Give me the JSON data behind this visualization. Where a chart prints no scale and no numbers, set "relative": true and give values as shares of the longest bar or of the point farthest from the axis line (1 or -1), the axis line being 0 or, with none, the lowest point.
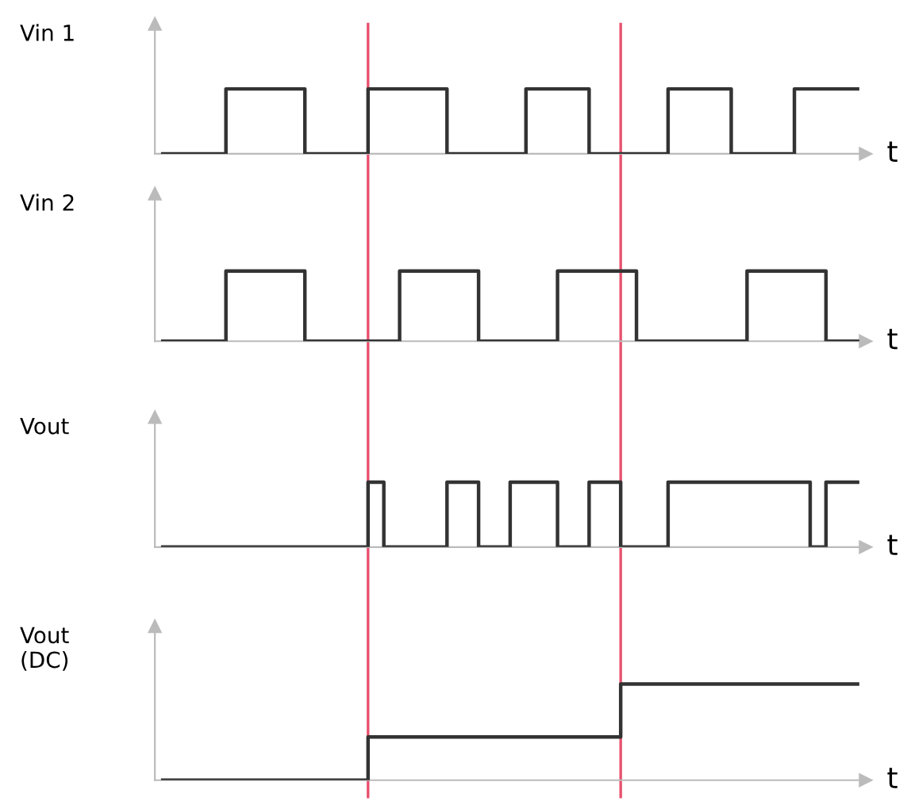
{
  "chart_data": [
    {
      "type": "step",
      "relative": true,
      "ylabel": "Vin 1",
      "xlabel": "t",
      "tick_labels": false,
      "categories": [
        null,
        null,
        null,
        null,
        null,
        null,
        null,
        null,
        null,
        null,
        null,
        null,
        null,
        null,
        null,
        null,
        null,
        null,
        null,
        null,
        null,
        null,
        null,
        null,
        null,
        null,
        null,
        null,
        null,
        null,
        null,
        null,
        null,
        null,
        null,
        null,
        null,
        null,
        null,
        null,
        null,
        null,
        null,
        null,
        null
      ],
      "series": [
        {
          "color": "#333333",
          "values": [
            0,
            0,
            0,
            0,
            1,
            1,
            1,
            1,
            1,
            0,
            0,
            0,
            0,
            1,
            1,
            1,
            1,
            1,
            0,
            0,
            0,
            0,
            0,
            1,
            1,
            1,
            1,
            0,
            0,
            0,
            0,
            0,
            1,
            1,
            1,
            1,
            0,
            0,
            0,
            0,
            1,
            1,
            1,
            1,
            1
          ]
        }
      ]
    },
    {
      "type": "step",
      "relative": true,
      "ylabel": "Vin 2",
      "xlabel": "t",
      "tick_labels": false,
      "categories": [
        null,
        null,
        null,
        null,
        null,
        null,
        null,
        null,
        null,
        null,
        null,
        null,
        null,
        null,
        null,
        null,
        null,
        null,
        null,
        null,
        null,
        null,
        null,
        null,
        null,
        null,
        null,
        null,
        null,
        null,
        null,
        null,
        null,
        null,
        null,
        null,
        null,
        null,
        null,
        null,
        null,
        null,
        null,
        null,
        null
      ],
      "series": [
        {
          "color": "#333333",
          "values": [
            0,
            0,
            0,
            0,
            1,
            1,
            1,
            1,
            1,
            0,
            0,
            0,
            0,
            0,
            0,
            1,
            1,
            1,
            1,
            1,
            0,
            0,
            0,
            0,
            0,
            1,
            1,
            1,
            1,
            1,
            0,
            0,
            0,
            0,
            0,
            0,
            0,
            1,
            1,
            1,
            1,
            1,
            0,
            0,
            0
          ]
        }
      ]
    },
    {
      "type": "step",
      "relative": true,
      "ylabel": "Vout",
      "xlabel": "t",
      "tick_labels": false,
      "categories": [
        null,
        null,
        null,
        null,
        null,
        null,
        null,
        null,
        null,
        null,
        null,
        null,
        null,
        null,
        null,
        null,
        null,
        null,
        null,
        null,
        null,
        null,
        null,
        null,
        null,
        null,
        null,
        null,
        null,
        null,
        null,
        null,
        null,
        null,
        null,
        null,
        null,
        null,
        null,
        null,
        null,
        null,
        null,
        null,
        null
      ],
      "series": [
        {
          "color": "#333333",
          "values": [
            0,
            0,
            0,
            0,
            0,
            0,
            0,
            0,
            0,
            0,
            0,
            0,
            0,
            1,
            0,
            0,
            0,
            0,
            1,
            1,
            0,
            0,
            1,
            1,
            1,
            0,
            0,
            1,
            1,
            0,
            0,
            0,
            1,
            1,
            1,
            1,
            1,
            1,
            1,
            1,
            1,
            0,
            1,
            1,
            1
          ]
        }
      ]
    },
    {
      "type": "step",
      "relative": true,
      "ylabel": "Vout\n(DC)",
      "xlabel": "t",
      "tick_labels": false,
      "categories": [
        null,
        null,
        null,
        null,
        null,
        null,
        null,
        null,
        null,
        null,
        null,
        null,
        null,
        null,
        null,
        null,
        null,
        null,
        null,
        null,
        null,
        null,
        null,
        null,
        null,
        null,
        null,
        null,
        null,
        null,
        null,
        null,
        null,
        null,
        null,
        null,
        null,
        null,
        null,
        null,
        null,
        null,
        null,
        null,
        null
      ],
      "series": [
        {
          "color": "#333333",
          "values": [
            0,
            0,
            0,
            0,
            0,
            0,
            0,
            0,
            0,
            0,
            0,
            0,
            0,
            0.45,
            0.45,
            0.45,
            0.45,
            0.45,
            0.45,
            0.45,
            0.45,
            0.45,
            0.45,
            0.45,
            0.45,
            0.45,
            0.45,
            0.45,
            0.45,
            1,
            1,
            1,
            1,
            1,
            1,
            1,
            1,
            1,
            1,
            1,
            1,
            1,
            1,
            1,
            1
          ]
        }
      ]
    }
  ]
}
